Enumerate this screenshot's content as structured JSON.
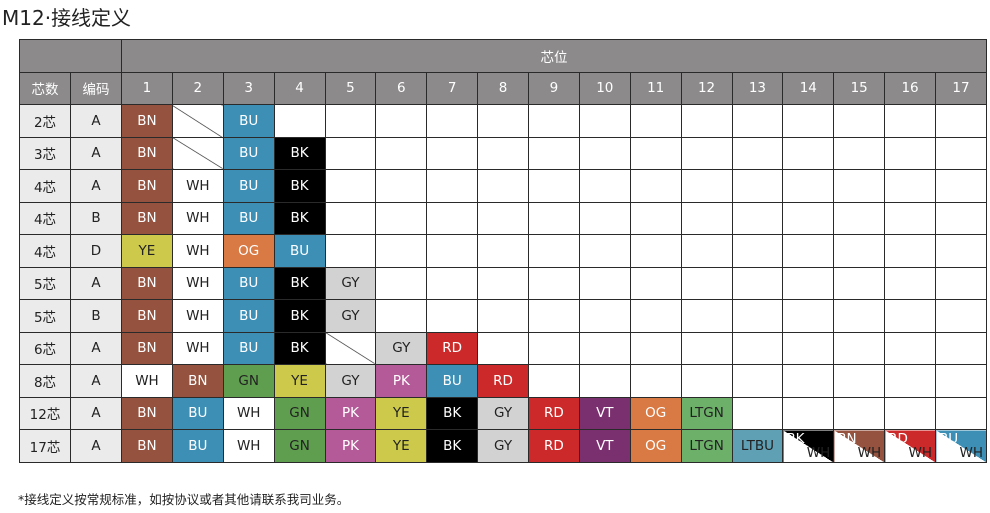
{
  "title": "M12·接线定义",
  "header": {
    "pin_group": "芯位",
    "cores_label": "芯数",
    "code_label": "编码",
    "pins": [
      "1",
      "2",
      "3",
      "4",
      "5",
      "6",
      "7",
      "8",
      "9",
      "10",
      "11",
      "12",
      "13",
      "14",
      "15",
      "16",
      "17"
    ]
  },
  "colors": {
    "BN": "#94523f",
    "BU": "#3d8fb5",
    "BK": "#000000",
    "WH": "#ffffff",
    "YE": "#cdc94a",
    "OG": "#d97a45",
    "GY": "#d2d2d2",
    "RD": "#cc2a2a",
    "PK": "#b55a98",
    "GN": "#5f9e4f",
    "VT": "#7a2f6e",
    "LTGN": "#6db06a",
    "LTBU": "#5fa0b5",
    "header": "#8c8a8a"
  },
  "rows": [
    {
      "cores": "2芯",
      "code": "A",
      "cells": [
        "BN",
        "/",
        "BU"
      ]
    },
    {
      "cores": "3芯",
      "code": "A",
      "cells": [
        "BN",
        "/",
        "BU",
        "BK"
      ]
    },
    {
      "cores": "4芯",
      "code": "A",
      "cells": [
        "BN",
        "WH",
        "BU",
        "BK"
      ]
    },
    {
      "cores": "4芯",
      "code": "B",
      "cells": [
        "BN",
        "WH",
        "BU",
        "BK"
      ]
    },
    {
      "cores": "4芯",
      "code": "D",
      "cells": [
        "YE",
        "WH",
        "OG",
        "BU"
      ]
    },
    {
      "cores": "5芯",
      "code": "A",
      "cells": [
        "BN",
        "WH",
        "BU",
        "BK",
        "GY"
      ]
    },
    {
      "cores": "5芯",
      "code": "B",
      "cells": [
        "BN",
        "WH",
        "BU",
        "BK",
        "GY"
      ]
    },
    {
      "cores": "6芯",
      "code": "A",
      "cells": [
        "BN",
        "WH",
        "BU",
        "BK",
        "/",
        "GY",
        "RD"
      ]
    },
    {
      "cores": "8芯",
      "code": "A",
      "cells": [
        "WH",
        "BN",
        "GN",
        "YE",
        "GY",
        "PK",
        "BU",
        "RD"
      ]
    },
    {
      "cores": "12芯",
      "code": "A",
      "cells": [
        "BN",
        "BU",
        "WH",
        "GN",
        "PK",
        "YE",
        "BK",
        "GY",
        "RD",
        "VT",
        "OG",
        "LTGN"
      ]
    },
    {
      "cores": "17芯",
      "code": "A",
      "cells": [
        "BN",
        "BU",
        "WH",
        "GN",
        "PK",
        "YE",
        "BK",
        "GY",
        "RD",
        "VT",
        "OG",
        "LTGN",
        "LTBU",
        "BK/WH",
        "BN/WH",
        "RD/WH",
        "BU/WH"
      ]
    }
  ],
  "note": "*接线定义按常规标准，如按协议或者其他请联系我司业务。"
}
